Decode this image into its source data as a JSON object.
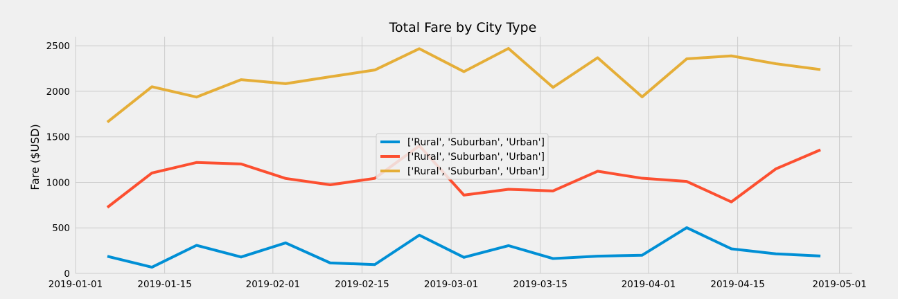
{
  "chart_data": {
    "type": "line",
    "title": "Total Fare by City Type",
    "xlabel": "",
    "ylabel": "Fare ($USD)",
    "ylim": [
      0,
      2600
    ],
    "xlim": [
      "2019-01-01",
      "2019-05-03"
    ],
    "grid": true,
    "legend_position": "center",
    "x": [
      "2019-01-06",
      "2019-01-13",
      "2019-01-20",
      "2019-01-27",
      "2019-02-03",
      "2019-02-10",
      "2019-02-17",
      "2019-02-24",
      "2019-03-03",
      "2019-03-10",
      "2019-03-17",
      "2019-03-24",
      "2019-03-31",
      "2019-04-07",
      "2019-04-14",
      "2019-04-21",
      "2019-04-28"
    ],
    "x_ticks": [
      "2019-01-01",
      "2019-01-15",
      "2019-02-01",
      "2019-02-15",
      "2019-03-01",
      "2019-03-15",
      "2019-04-01",
      "2019-04-15",
      "2019-05-01"
    ],
    "y_ticks": [
      0,
      500,
      1000,
      1500,
      2000,
      2500
    ],
    "series": [
      {
        "name": "['Rural', 'Suburban', 'Urban']",
        "color": "#008fd5",
        "values": [
          188,
          68,
          308,
          180,
          335,
          115,
          97,
          420,
          176,
          305,
          163,
          189,
          200,
          502,
          270,
          215,
          191
        ]
      },
      {
        "name": "['Rural', 'Suburban', 'Urban']",
        "color": "#fc4f30",
        "values": [
          725,
          1103,
          1218,
          1202,
          1043,
          973,
          1044,
          1402,
          860,
          924,
          906,
          1122,
          1045,
          1010,
          785,
          1148,
          1357
        ]
      },
      {
        "name": "['Rural', 'Suburban', 'Urban']",
        "color": "#e5ae38",
        "values": [
          1662,
          2050,
          1937,
          2128,
          2084,
          2160,
          2234,
          2468,
          2216,
          2471,
          2043,
          2369,
          1939,
          2357,
          2389,
          2303,
          2239
        ]
      }
    ]
  }
}
